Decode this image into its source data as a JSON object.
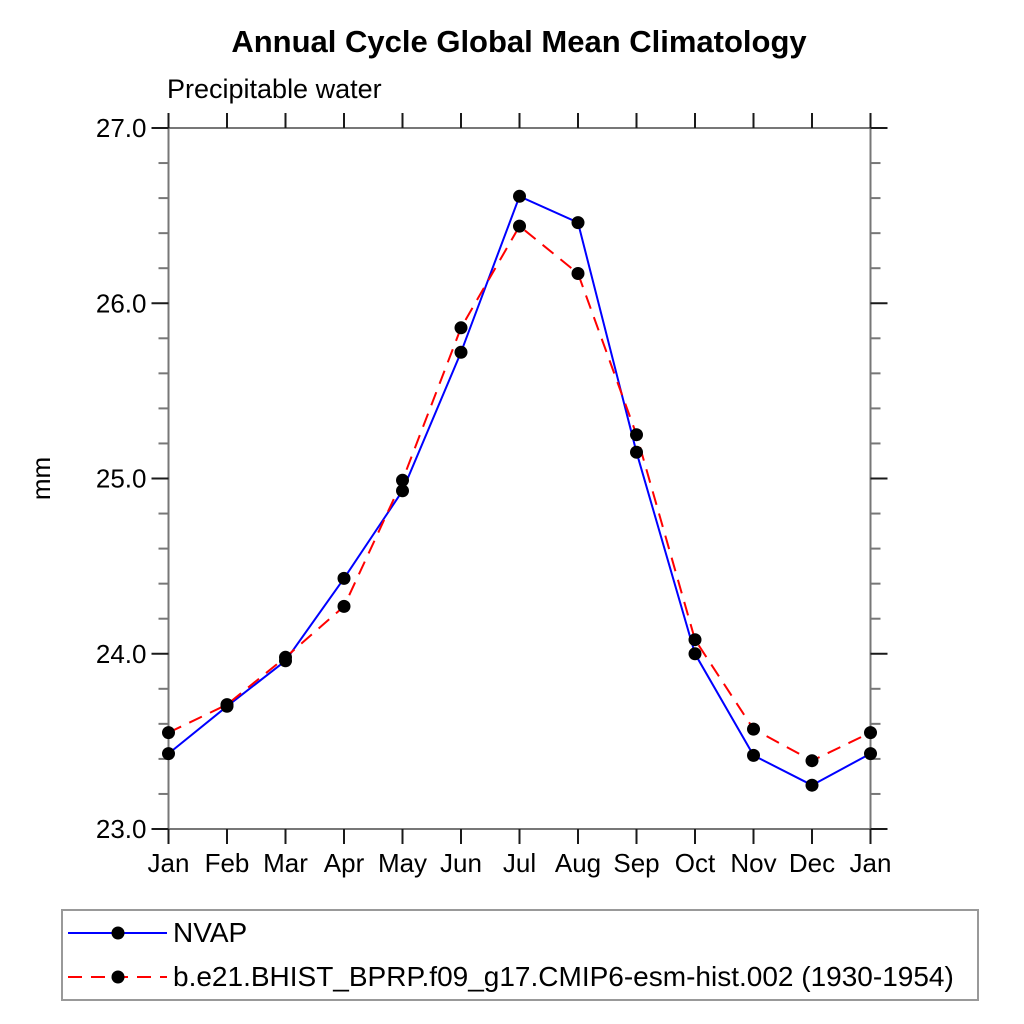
{
  "title": "Annual Cycle Global Mean Climatology",
  "subtitle": "Precipitable water",
  "chart_data": {
    "type": "line",
    "categories": [
      "Jan",
      "Feb",
      "Mar",
      "Apr",
      "May",
      "Jun",
      "Jul",
      "Aug",
      "Sep",
      "Oct",
      "Nov",
      "Dec",
      "Jan"
    ],
    "xlabel": "",
    "ylabel": "mm",
    "ylim": [
      23.0,
      27.0
    ],
    "ytick_major_values": [
      23.0,
      24.0,
      25.0,
      26.0,
      27.0
    ],
    "ytick_major_labels": [
      "23.0",
      "24.0",
      "25.0",
      "26.0",
      "27.0"
    ],
    "ytick_minor_step": 0.2,
    "grid": "off",
    "legend_position": "bottom-left-box",
    "series": [
      {
        "name": "NVAP",
        "color": "#0000ff",
        "style": "solid",
        "marker": "circle",
        "marker_color": "#000000",
        "values": [
          23.43,
          23.7,
          23.96,
          24.43,
          24.93,
          25.72,
          26.61,
          26.46,
          25.15,
          24.0,
          23.42,
          23.25,
          23.43
        ]
      },
      {
        "name": "b.e21.BHIST_BPRP.f09_g17.CMIP6-esm-hist.002 (1930-1954)",
        "color": "#ff0000",
        "style": "dashed",
        "marker": "circle",
        "marker_color": "#000000",
        "values": [
          23.55,
          23.71,
          23.98,
          24.27,
          24.99,
          25.86,
          26.44,
          26.17,
          25.25,
          24.08,
          23.57,
          23.39,
          23.55
        ]
      }
    ]
  }
}
